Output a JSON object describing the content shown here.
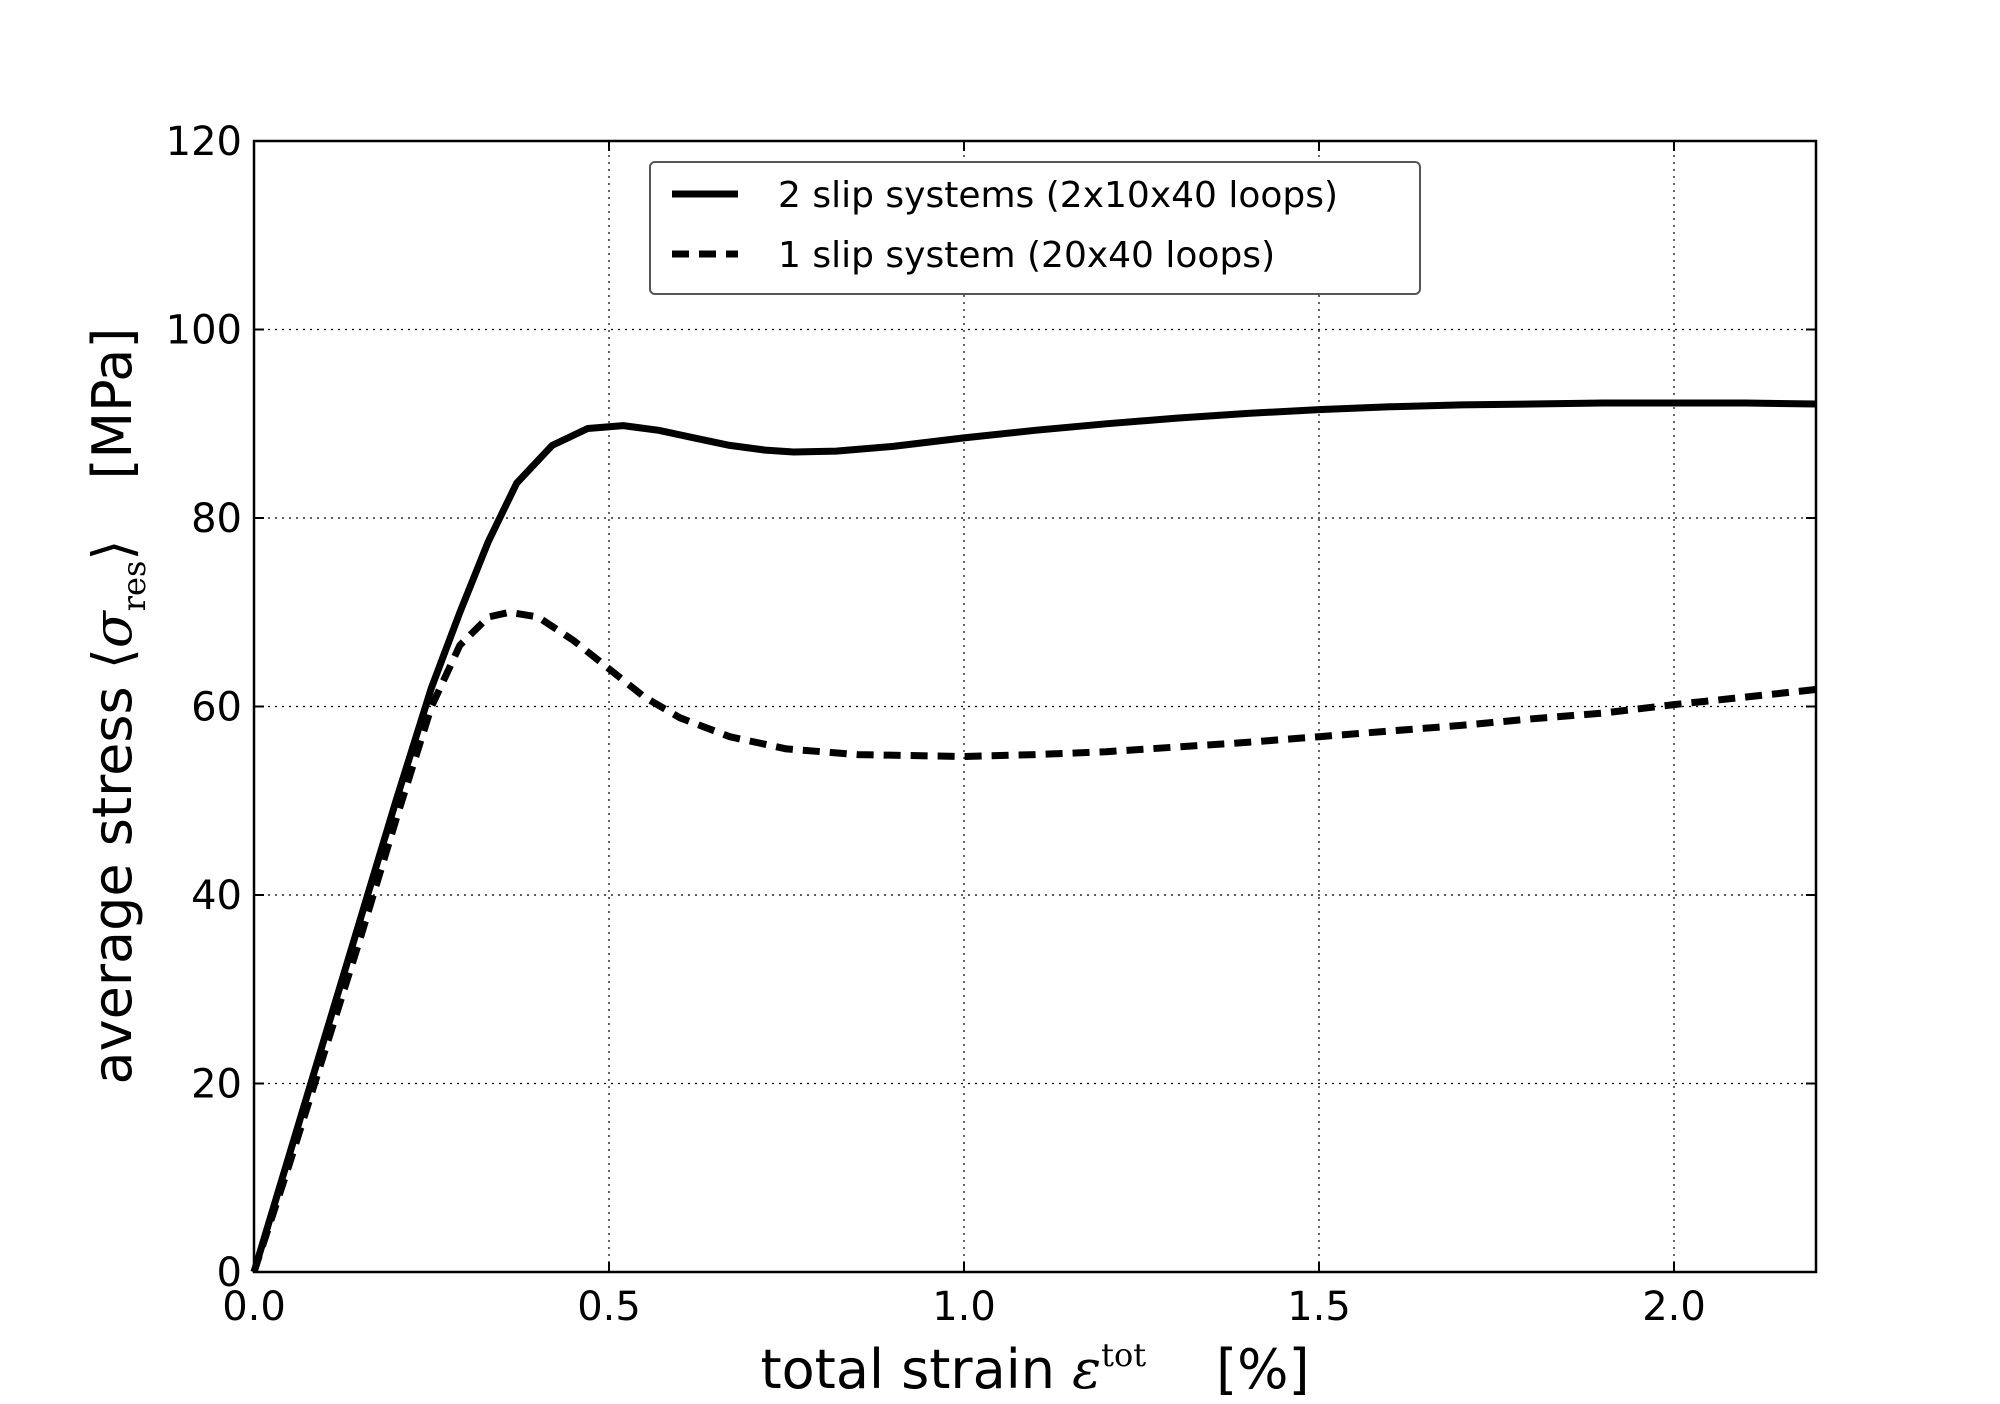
{
  "chart_data": {
    "type": "line",
    "xlabel": {
      "prefix": "total strain ",
      "symbol": "ε",
      "superscript": "tot",
      "unit": "[%]"
    },
    "ylabel": {
      "prefix": "average stress ",
      "open": "⟨",
      "symbol": "σ",
      "subscript": "res",
      "close": "⟩",
      "unit": "[MPa]"
    },
    "xlim": [
      0,
      2.2
    ],
    "ylim": [
      0,
      120
    ],
    "xticks": [
      0.0,
      0.5,
      1.0,
      1.5,
      2.0
    ],
    "xtick_labels": [
      "0.0",
      "0.5",
      "1.0",
      "1.5",
      "2.0"
    ],
    "yticks": [
      0,
      20,
      40,
      60,
      80,
      100,
      120
    ],
    "ytick_labels": [
      "0",
      "20",
      "40",
      "60",
      "80",
      "100",
      "120"
    ],
    "grid": true,
    "legend_position": "upper center",
    "series": [
      {
        "name": "2 slip systems (2x10x40 loops)",
        "style": "solid",
        "color": "#000000",
        "x": [
          0.0,
          0.05,
          0.1,
          0.15,
          0.2,
          0.25,
          0.29,
          0.33,
          0.37,
          0.42,
          0.47,
          0.52,
          0.57,
          0.62,
          0.67,
          0.72,
          0.76,
          0.82,
          0.9,
          1.0,
          1.1,
          1.2,
          1.3,
          1.4,
          1.5,
          1.6,
          1.7,
          1.8,
          1.9,
          2.0,
          2.1,
          2.2
        ],
        "y": [
          0,
          12.5,
          25,
          37.5,
          50,
          62,
          70,
          77.5,
          83.7,
          87.7,
          89.5,
          89.8,
          89.3,
          88.5,
          87.7,
          87.2,
          87.0,
          87.1,
          87.6,
          88.5,
          89.3,
          90.0,
          90.6,
          91.1,
          91.5,
          91.8,
          92.0,
          92.1,
          92.2,
          92.2,
          92.2,
          92.1
        ]
      },
      {
        "name": "1 slip system (20x40 loops)",
        "style": "dashed",
        "color": "#000000",
        "x": [
          0.0,
          0.05,
          0.1,
          0.15,
          0.2,
          0.25,
          0.29,
          0.33,
          0.36,
          0.4,
          0.45,
          0.5,
          0.55,
          0.6,
          0.67,
          0.75,
          0.85,
          1.0,
          1.1,
          1.2,
          1.3,
          1.4,
          1.5,
          1.6,
          1.7,
          1.8,
          1.9,
          2.0,
          2.1,
          2.2
        ],
        "y": [
          0,
          11.5,
          23.5,
          35.5,
          48,
          60,
          66.5,
          69.5,
          70.0,
          69.5,
          67.0,
          64.0,
          61.0,
          58.8,
          56.8,
          55.5,
          54.9,
          54.7,
          54.9,
          55.2,
          55.7,
          56.2,
          56.8,
          57.4,
          58.0,
          58.7,
          59.3,
          60.2,
          61.0,
          61.8
        ]
      }
    ]
  }
}
